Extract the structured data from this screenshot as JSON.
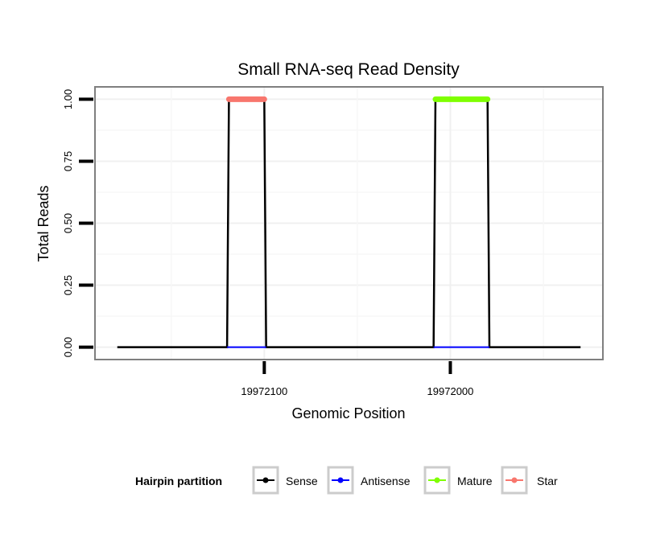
{
  "chart_data": {
    "type": "line",
    "title": "Small RNA-seq Read Density",
    "xlabel": "Genomic Position",
    "ylabel": "Total Reads",
    "xlim": [
      19972191,
      19971918
    ],
    "x_reversed": true,
    "ylim": [
      -0.05,
      1.05
    ],
    "x_ticks": [
      19972100,
      19972000
    ],
    "x_tick_labels": [
      "19972100",
      "19972000"
    ],
    "y_ticks": [
      0,
      0.25,
      0.5,
      0.75,
      1
    ],
    "y_tick_labels": [
      "0.00",
      "0.25",
      "0.50",
      "0.75",
      "1.00"
    ],
    "grid": true,
    "legend": {
      "title": "Hairpin partition",
      "placement": "bottom",
      "entries": [
        "Sense",
        "Antisense",
        "Mature",
        "Star"
      ]
    },
    "series": [
      {
        "name": "Sense",
        "color": "#000000",
        "points": [
          [
            19972179,
            0
          ],
          [
            19972120,
            0
          ],
          [
            19972119,
            1
          ],
          [
            19972100,
            1
          ],
          [
            19972099,
            0
          ],
          [
            19972009,
            0
          ],
          [
            19972008,
            1
          ],
          [
            19971980,
            1
          ],
          [
            19971979,
            0
          ],
          [
            19971930,
            0
          ]
        ]
      },
      {
        "name": "Antisense",
        "color": "#0000ff",
        "segments": [
          [
            [
              19972120,
              0
            ],
            [
              19972099,
              0
            ]
          ],
          [
            [
              19972009,
              0
            ],
            [
              19971979,
              0
            ]
          ]
        ]
      },
      {
        "name": "Mature",
        "color": "#7fff00",
        "segments": [
          [
            [
              19972008,
              1
            ],
            [
              19971980,
              1
            ]
          ]
        ]
      },
      {
        "name": "Star",
        "color": "#f8766d",
        "segments": [
          [
            [
              19972119,
              1
            ],
            [
              19972100,
              1
            ]
          ]
        ]
      }
    ]
  }
}
